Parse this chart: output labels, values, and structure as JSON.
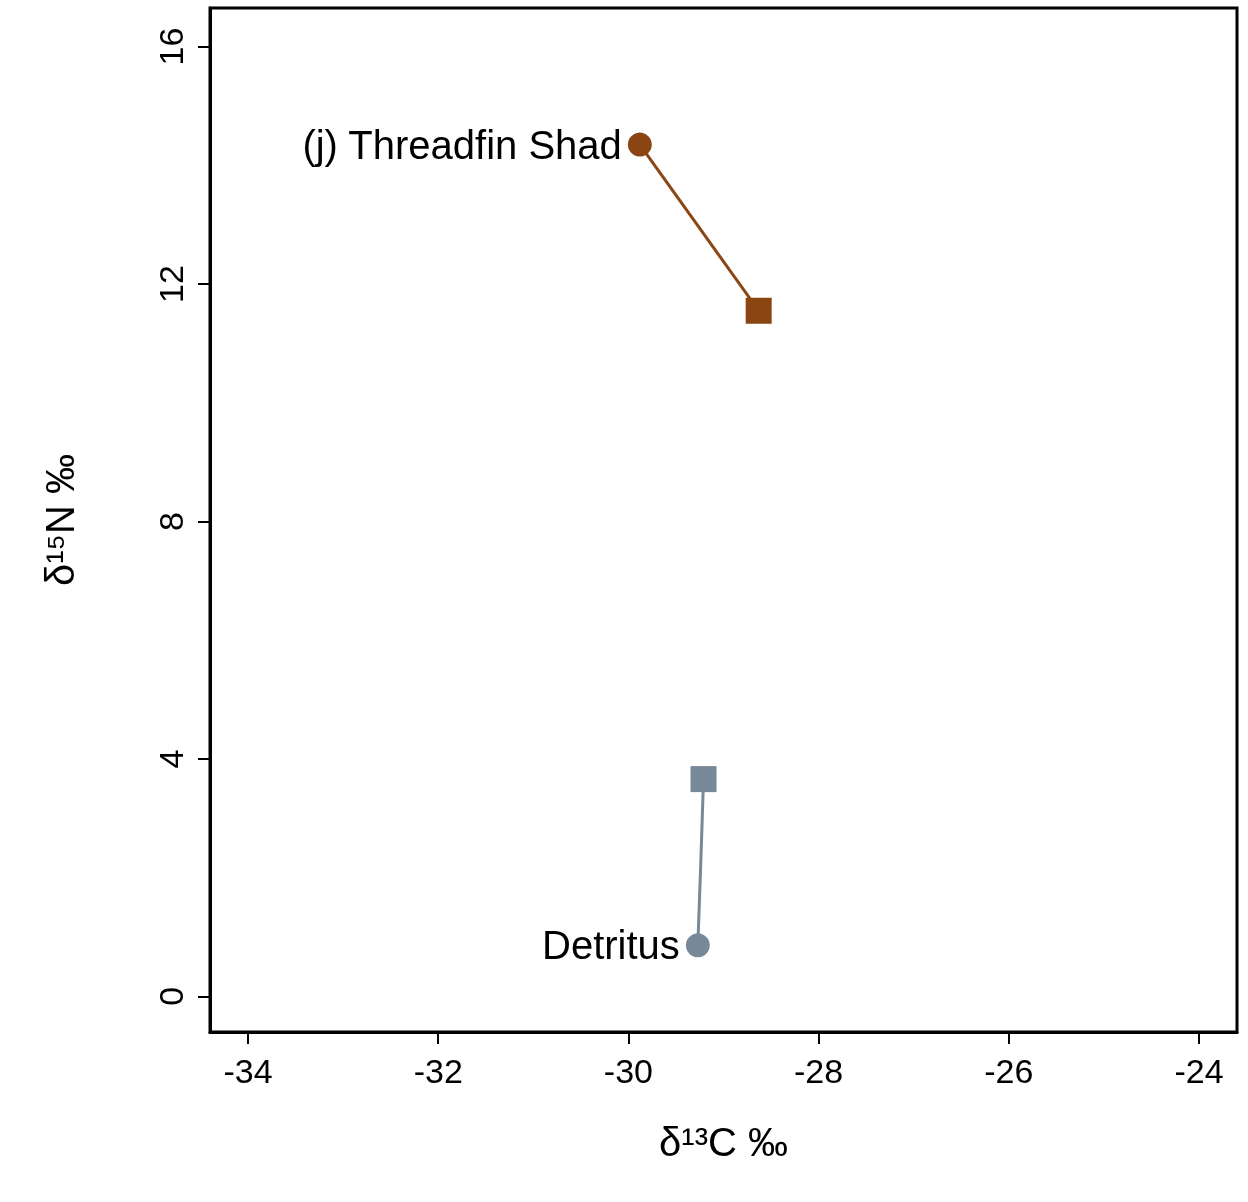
{
  "chart_data": {
    "type": "line",
    "xlabel": "δ¹³C ‰",
    "ylabel": "δ¹⁵N ‰",
    "xlim": [
      -34.4,
      -23.6
    ],
    "xticks": [
      -34,
      -32,
      -30,
      -28,
      -26,
      -24
    ],
    "ylim": [
      -0.6,
      16.65
    ],
    "yticks": [
      0,
      4,
      8,
      12,
      16
    ],
    "grid": false,
    "line_style": "solid",
    "series": [
      {
        "marker": "none",
        "color": "#8b4513",
        "x": [
          -29.88,
          -28.63
        ],
        "values": [
          14.35,
          11.55
        ]
      },
      {
        "type": "scatter",
        "marker": "circle",
        "color": "#8b4513",
        "x": [
          -29.88
        ],
        "values": [
          14.35
        ]
      },
      {
        "type": "scatter",
        "marker": "square",
        "color": "#8b4513",
        "x": [
          -28.63
        ],
        "values": [
          11.55
        ]
      },
      {
        "marker": "none",
        "color": "#778899",
        "x": [
          -29.27,
          -29.24,
          -29.21
        ],
        "values": [
          0.86,
          2.2,
          3.66
        ]
      },
      {
        "type": "scatter",
        "marker": "circle",
        "color": "#778899",
        "x": [
          -29.27
        ],
        "values": [
          0.86
        ]
      },
      {
        "type": "scatter",
        "marker": "square",
        "color": "#778899",
        "x": [
          -29.21
        ],
        "values": [
          3.66
        ]
      }
    ],
    "annotations": [
      {
        "text": "(j) Threadfin Shad",
        "x": -29.88,
        "y": 14.35
      },
      {
        "text": "Detritus",
        "x": -29.27,
        "y": 0.86
      }
    ]
  }
}
